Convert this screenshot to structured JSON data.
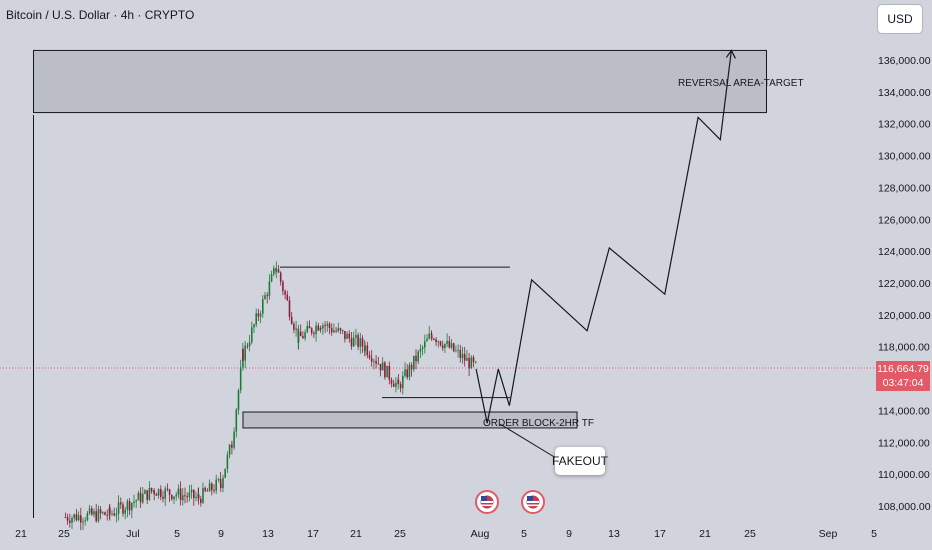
{
  "header": {
    "title": "Bitcoin / U.S. Dollar · 4h · CRYPTO",
    "currency_button": "USD"
  },
  "colors": {
    "background": "#d1d4dc",
    "candle_up": "#1f7a3a",
    "candle_down": "#8e1c3a",
    "price_line": "#e05a67",
    "zone_fill": "#bcbec6",
    "drawing": "#131722"
  },
  "price_tag": {
    "price": "116,664.79",
    "countdown": "03:47:04"
  },
  "annotations": {
    "reversal_zone": "REVERSAL AREA-TARGET",
    "order_block": "ORDER BLOCK-2HR TF",
    "fakeout": "FAKEOUT"
  },
  "icons": [
    "us-flag-icon",
    "us-flag-icon"
  ],
  "chart_data": {
    "type": "candlestick",
    "title": "Bitcoin / U.S. Dollar · 4h · CRYPTO",
    "ylim": [
      107000,
      138000
    ],
    "y_ticks": [
      "108,000.00",
      "110,000.00",
      "112,000.00",
      "114,000.00",
      "116,000.00",
      "118,000.00",
      "120,000.00",
      "122,000.00",
      "124,000.00",
      "126,000.00",
      "128,000.00",
      "130,000.00",
      "132,000.00",
      "134,000.00",
      "136,000.00"
    ],
    "x_ticks": [
      "21",
      "25",
      "Jul",
      "5",
      "9",
      "13",
      "17",
      "21",
      "25",
      "Aug",
      "5",
      "9",
      "13",
      "17",
      "21",
      "25",
      "Sep",
      "5"
    ],
    "candles_approx": [
      {
        "date": "Jun 25",
        "close": 107300
      },
      {
        "date": "Jun 29",
        "close": 107500
      },
      {
        "date": "Jul 3",
        "close": 109000
      },
      {
        "date": "Jul 7",
        "close": 108500
      },
      {
        "date": "Jul 9",
        "close": 109500
      },
      {
        "date": "Jul 10",
        "close": 112000
      },
      {
        "date": "Jul 11",
        "close": 117500
      },
      {
        "date": "Jul 14",
        "close": 123000
      },
      {
        "date": "Jul 16",
        "close": 118500
      },
      {
        "date": "Jul 18",
        "close": 119500
      },
      {
        "date": "Jul 22",
        "close": 118000
      },
      {
        "date": "Jul 25",
        "close": 115500
      },
      {
        "date": "Jul 28",
        "close": 118800
      },
      {
        "date": "Aug 1",
        "close": 116665
      }
    ],
    "levels": {
      "range_high": 123000,
      "range_low": 114800,
      "order_block": [
        112900,
        113900
      ],
      "reversal_zone": [
        132700,
        136600
      ],
      "current_price": 116664.79
    },
    "projection_path": [
      {
        "date": "Aug 1",
        "price": 116600
      },
      {
        "date": "Aug 2",
        "price": 113200
      },
      {
        "date": "Aug 3",
        "price": 116600
      },
      {
        "date": "Aug 4",
        "price": 114300
      },
      {
        "date": "Aug 6",
        "price": 122200
      },
      {
        "date": "Aug 11",
        "price": 119000
      },
      {
        "date": "Aug 13",
        "price": 124200
      },
      {
        "date": "Aug 18",
        "price": 121300
      },
      {
        "date": "Aug 21",
        "price": 132400
      },
      {
        "date": "Aug 23",
        "price": 131000
      },
      {
        "date": "Aug 24",
        "price": 136600
      }
    ]
  }
}
